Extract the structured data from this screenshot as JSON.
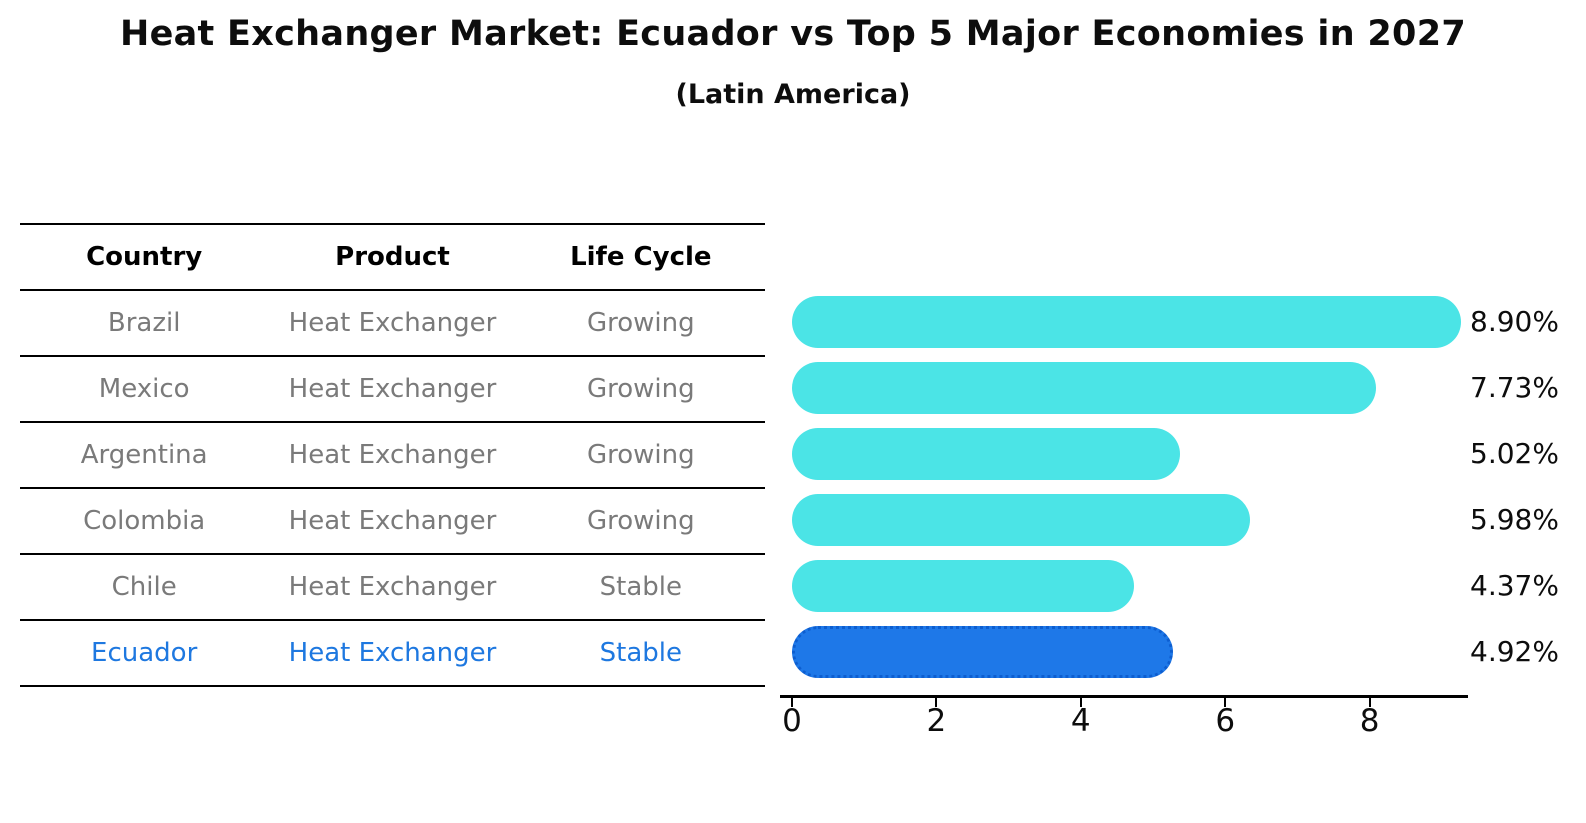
{
  "title": "Heat Exchanger Market: Ecuador vs Top 5 Major Economies in 2027",
  "subtitle": "(Latin America)",
  "table": {
    "columns": [
      "Country",
      "Product",
      "Life Cycle"
    ],
    "rows": [
      {
        "country": "Brazil",
        "product": "Heat Exchanger",
        "life_cycle": "Growing",
        "highlight": false
      },
      {
        "country": "Mexico",
        "product": "Heat Exchanger",
        "life_cycle": "Growing",
        "highlight": false
      },
      {
        "country": "Argentina",
        "product": "Heat Exchanger",
        "life_cycle": "Growing",
        "highlight": false
      },
      {
        "country": "Colombia",
        "product": "Heat Exchanger",
        "life_cycle": "Growing",
        "highlight": false
      },
      {
        "country": "Chile",
        "product": "Heat Exchanger",
        "life_cycle": "Stable",
        "highlight": false
      },
      {
        "country": "Ecuador",
        "product": "Heat Exchanger",
        "life_cycle": "Stable",
        "highlight": true
      }
    ]
  },
  "chart_data": {
    "type": "bar",
    "orientation": "horizontal",
    "title": "Heat Exchanger Market: Ecuador vs Top 5 Major Economies in 2027 (Latin America)",
    "categories": [
      "Brazil",
      "Mexico",
      "Argentina",
      "Colombia",
      "Chile",
      "Ecuador"
    ],
    "values": [
      8.9,
      7.73,
      5.02,
      5.98,
      4.37,
      4.92
    ],
    "value_labels": [
      "8.90%",
      "7.73%",
      "5.02%",
      "5.98%",
      "4.37%",
      "4.92%"
    ],
    "unit": "percent CAGR",
    "xlabel": "",
    "ylabel": "",
    "xlim": [
      0,
      9.4
    ],
    "x_ticks": [
      "0",
      "2",
      "4",
      "6",
      "8"
    ],
    "grid": false,
    "legend": "none",
    "highlight_index": 5,
    "bar_color": "#4be4e6",
    "highlight_color": "#1e78e8",
    "highlight_border_color": "#0d5ed0",
    "highlight_border_style": "dotted"
  },
  "colors": {
    "background": "#ffffff",
    "table_line": "#000000",
    "header_text": "#000000",
    "cell_text": "#7a7a7a",
    "highlight_text": "#1e78e0",
    "axis": "#000000"
  }
}
